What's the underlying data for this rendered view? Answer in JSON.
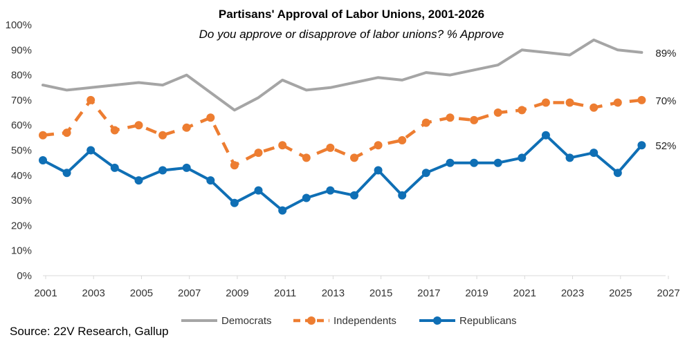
{
  "chart_data": {
    "type": "line",
    "title": "Partisans' Approval of Labor Unions, 2001-2026",
    "subtitle": "Do you approve or disapprove of labor unions? % Approve",
    "source": "Source: 22V Research, Gallup",
    "x_ticks": [
      "2001",
      "2003",
      "2005",
      "2007",
      "2009",
      "2011",
      "2013",
      "2015",
      "2017",
      "2019",
      "2021",
      "2023",
      "2025",
      "2027"
    ],
    "xlim": [
      2001,
      2027
    ],
    "y_ticks": [
      "0%",
      "10%",
      "20%",
      "30%",
      "40%",
      "50%",
      "60%",
      "70%",
      "80%",
      "90%",
      "100%"
    ],
    "ylim": [
      0,
      100
    ],
    "series": [
      {
        "name": "Democrats",
        "color": "#A5A5A5",
        "style": "solid",
        "markers": false,
        "end_label": "89%",
        "points": [
          [
            2001,
            76
          ],
          [
            2002,
            74
          ],
          [
            2003,
            75
          ],
          [
            2004,
            76
          ],
          [
            2005,
            77
          ],
          [
            2006,
            76
          ],
          [
            2007,
            80
          ],
          [
            2008,
            73
          ],
          [
            2009,
            66
          ],
          [
            2010,
            71
          ],
          [
            2011,
            78
          ],
          [
            2012,
            74
          ],
          [
            2013,
            75
          ],
          [
            2014,
            77
          ],
          [
            2015,
            79
          ],
          [
            2016,
            78
          ],
          [
            2017,
            81
          ],
          [
            2018,
            80
          ],
          [
            2019,
            82
          ],
          [
            2020,
            84
          ],
          [
            2021,
            90
          ],
          [
            2022,
            89
          ],
          [
            2023,
            88
          ],
          [
            2024,
            94
          ],
          [
            2025,
            90
          ],
          [
            2026,
            89
          ]
        ]
      },
      {
        "name": "Independents",
        "color": "#ED7D31",
        "style": "dashed",
        "markers": true,
        "end_label": "70%",
        "points": [
          [
            2001,
            56
          ],
          [
            2002,
            57
          ],
          [
            2003,
            70
          ],
          [
            2004,
            58
          ],
          [
            2005,
            60
          ],
          [
            2006,
            56
          ],
          [
            2007,
            59
          ],
          [
            2008,
            63
          ],
          [
            2009,
            44
          ],
          [
            2010,
            49
          ],
          [
            2011,
            52
          ],
          [
            2012,
            47
          ],
          [
            2013,
            51
          ],
          [
            2014,
            47
          ],
          [
            2015,
            52
          ],
          [
            2016,
            54
          ],
          [
            2017,
            61
          ],
          [
            2018,
            63
          ],
          [
            2019,
            62
          ],
          [
            2020,
            65
          ],
          [
            2021,
            66
          ],
          [
            2022,
            69
          ],
          [
            2023,
            69
          ],
          [
            2024,
            67
          ],
          [
            2025,
            69
          ],
          [
            2026,
            70
          ]
        ]
      },
      {
        "name": "Republicans",
        "color": "#0F6FB5",
        "style": "solid",
        "markers": true,
        "end_label": "52%",
        "points": [
          [
            2001,
            46
          ],
          [
            2002,
            41
          ],
          [
            2003,
            50
          ],
          [
            2004,
            43
          ],
          [
            2005,
            38
          ],
          [
            2006,
            42
          ],
          [
            2007,
            43
          ],
          [
            2008,
            38
          ],
          [
            2009,
            29
          ],
          [
            2010,
            34
          ],
          [
            2011,
            26
          ],
          [
            2012,
            31
          ],
          [
            2013,
            34
          ],
          [
            2014,
            32
          ],
          [
            2015,
            42
          ],
          [
            2016,
            32
          ],
          [
            2017,
            41
          ],
          [
            2018,
            45
          ],
          [
            2019,
            45
          ],
          [
            2020,
            45
          ],
          [
            2021,
            47
          ],
          [
            2022,
            56
          ],
          [
            2023,
            47
          ],
          [
            2024,
            49
          ],
          [
            2025,
            41
          ],
          [
            2026,
            52
          ]
        ]
      }
    ],
    "legend_position": "bottom",
    "grid": false
  }
}
